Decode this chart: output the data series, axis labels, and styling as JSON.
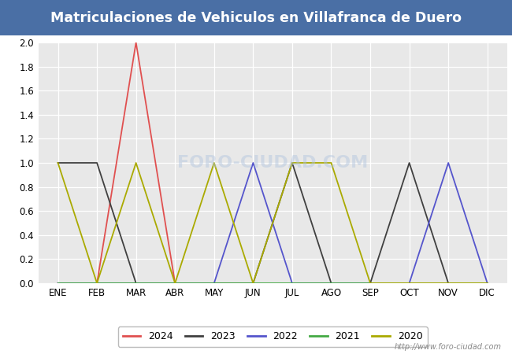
{
  "title": "Matriculaciones de Vehiculos en Villafranca de Duero",
  "title_color": "#ffffff",
  "title_bg_color": "#4a6fa5",
  "months": [
    "ENE",
    "FEB",
    "MAR",
    "ABR",
    "MAY",
    "JUN",
    "JUL",
    "AGO",
    "SEP",
    "OCT",
    "NOV",
    "DIC"
  ],
  "series": {
    "2024": {
      "color": "#e05050",
      "data": [
        0,
        0,
        2,
        0,
        0,
        null,
        null,
        null,
        null,
        null,
        null,
        null
      ]
    },
    "2023": {
      "color": "#404040",
      "data": [
        1,
        1,
        0,
        0,
        0,
        0,
        1,
        0,
        0,
        1,
        0,
        0
      ]
    },
    "2022": {
      "color": "#5555cc",
      "data": [
        0,
        0,
        0,
        0,
        0,
        1,
        0,
        0,
        0,
        0,
        1,
        0
      ]
    },
    "2021": {
      "color": "#44aa44",
      "data": [
        0,
        0,
        0,
        0,
        0,
        0,
        0,
        0,
        0,
        0,
        0,
        0
      ]
    },
    "2020": {
      "color": "#aaaa00",
      "data": [
        1,
        0,
        1,
        0,
        1,
        0,
        1,
        1,
        0,
        0,
        0,
        0
      ]
    }
  },
  "ylim": [
    0.0,
    2.0
  ],
  "yticks": [
    0.0,
    0.2,
    0.4,
    0.6,
    0.8,
    1.0,
    1.2,
    1.4,
    1.6,
    1.8,
    2.0
  ],
  "plot_bg_color": "#e8e8e8",
  "fig_bg_color": "#ffffff",
  "grid_color": "#ffffff",
  "watermark": "http://www.foro-ciudad.com",
  "legend_order": [
    "2024",
    "2023",
    "2022",
    "2021",
    "2020"
  ],
  "title_fontsize": 12.5,
  "tick_fontsize": 8.5,
  "legend_fontsize": 9,
  "linewidth": 1.3
}
